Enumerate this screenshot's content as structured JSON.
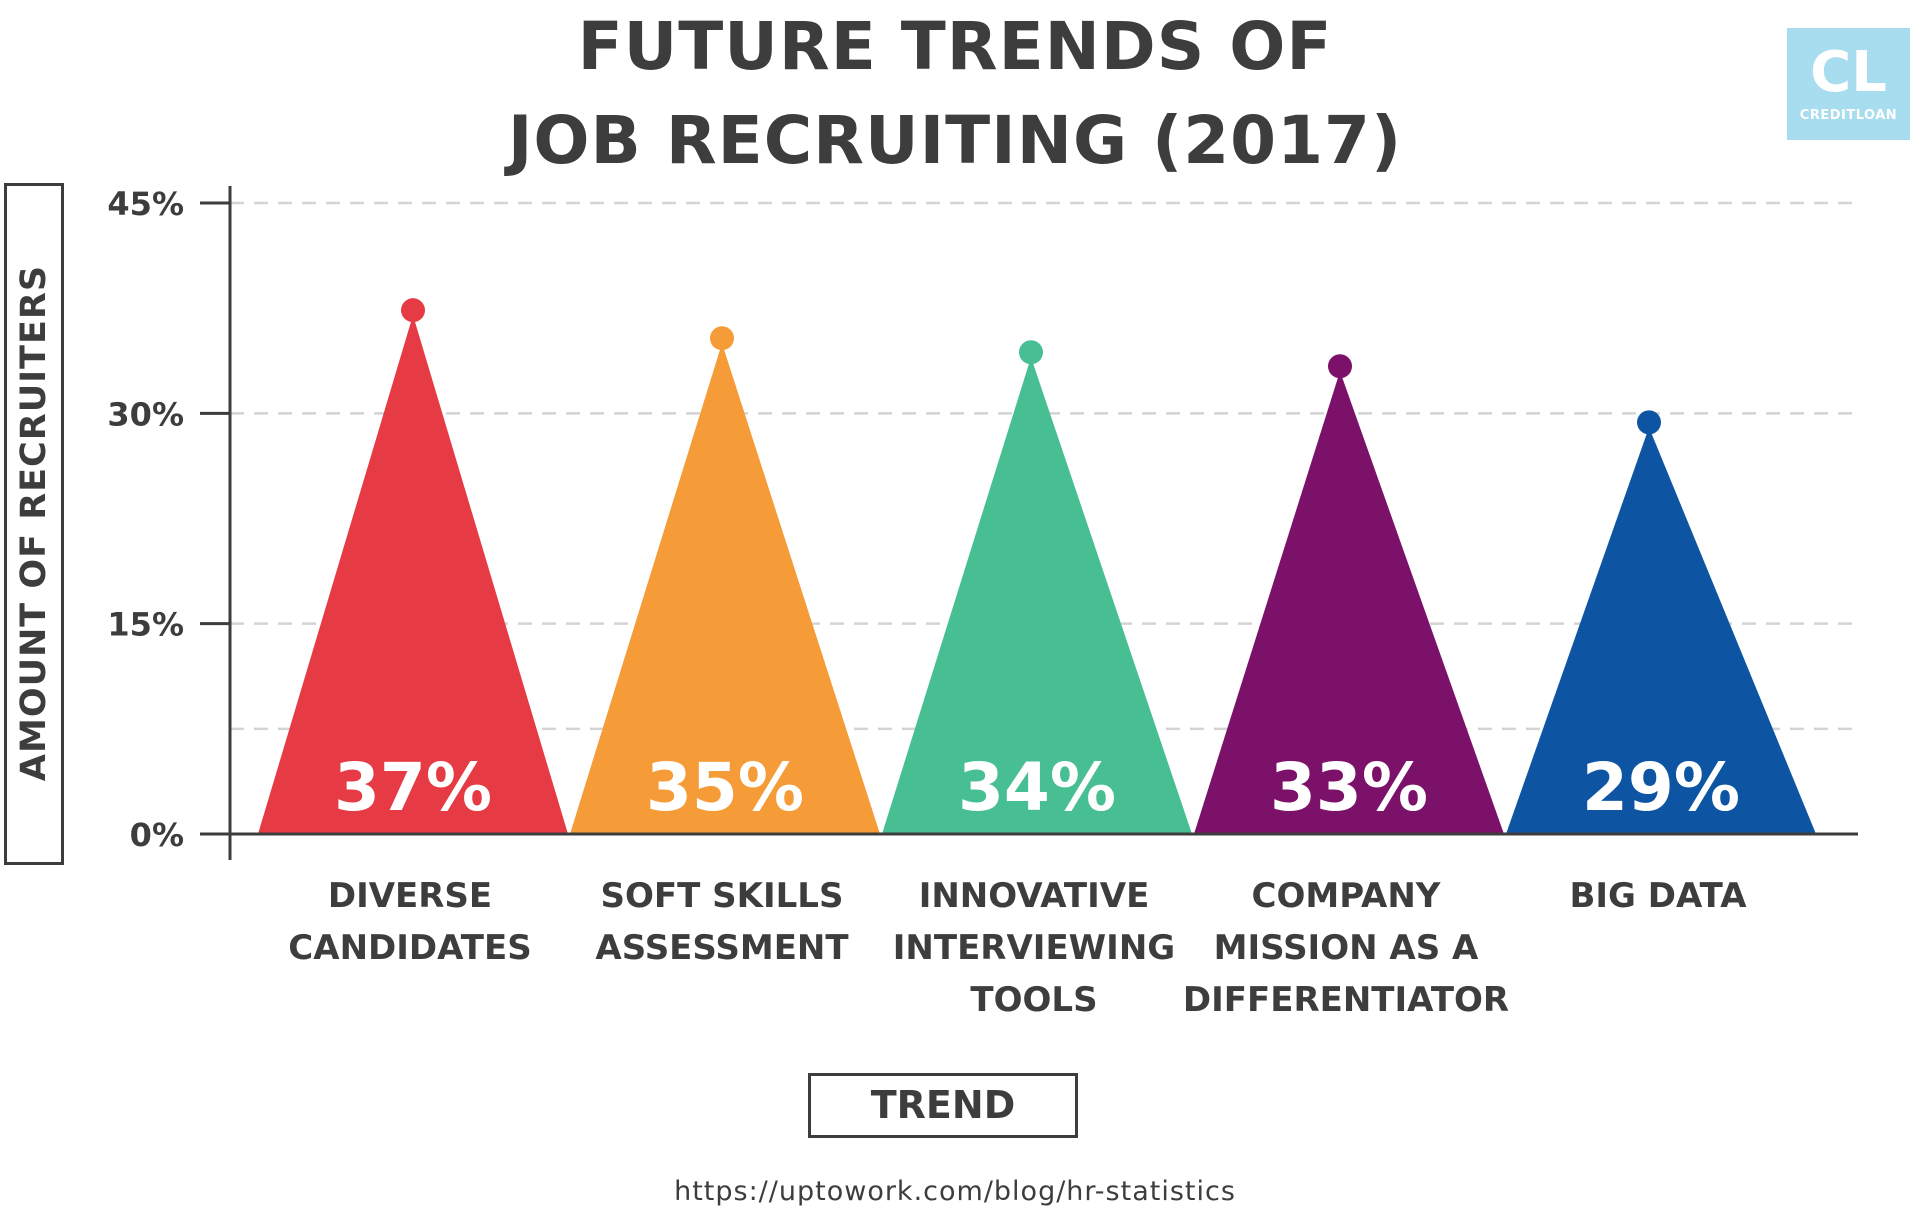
{
  "title_lines": [
    "FUTURE TRENDS OF",
    "JOB RECRUITING (2017)"
  ],
  "logo": {
    "mark": "CL",
    "word": "CREDITLOAN",
    "color": "#a8dcef"
  },
  "source": "https://uptowork.com/blog/hr-statistics",
  "chart_data": {
    "type": "bar",
    "title": "FUTURE TRENDS OF JOB RECRUITING (2017)",
    "xlabel": "TREND",
    "ylabel": "AMOUNT OF RECRUITERS",
    "ylim": [
      0,
      45
    ],
    "yticks": [
      0,
      15,
      30,
      45
    ],
    "ytick_labels": [
      "0%",
      "15%",
      "30%",
      "45%"
    ],
    "grid": true,
    "categories": [
      [
        "DIVERSE",
        "CANDIDATES"
      ],
      [
        "SOFT SKILLS",
        "ASSESSMENT"
      ],
      [
        "INNOVATIVE",
        "INTERVIEWING",
        "TOOLS"
      ],
      [
        "COMPANY",
        "MISSION AS A",
        "DIFFERENTIATOR"
      ],
      [
        "BIG DATA"
      ]
    ],
    "values": [
      37,
      35,
      34,
      33,
      29
    ],
    "value_labels": [
      "37%",
      "35%",
      "34%",
      "33%",
      "29%"
    ],
    "colors": [
      "#e63b45",
      "#f59b38",
      "#48bf93",
      "#7b1168",
      "#0d55a3"
    ]
  }
}
